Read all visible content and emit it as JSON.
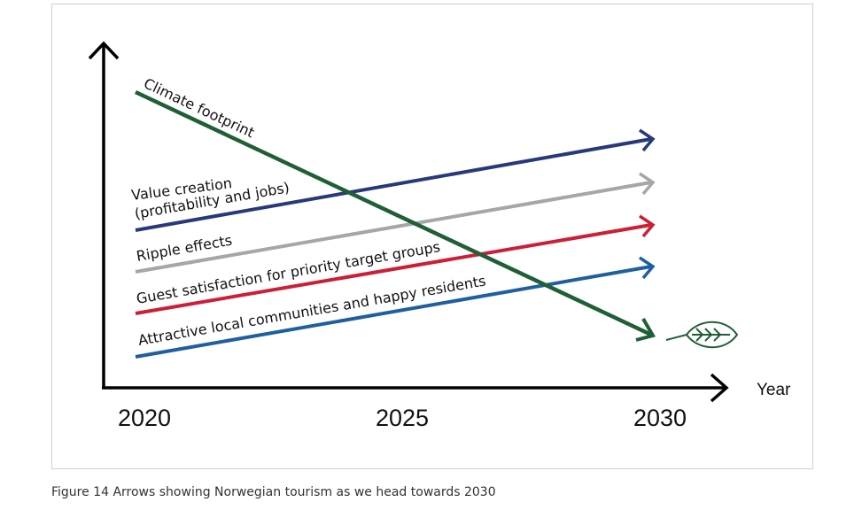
{
  "figure": {
    "caption": "Figure 14 Arrows showing Norwegian tourism as we head towards 2030"
  },
  "chart_data": {
    "type": "line",
    "x_axis": {
      "label": "Year",
      "ticks": [
        "2020",
        "2025",
        "2030"
      ]
    },
    "series": [
      {
        "name": "Climate footprint",
        "trend": "decreasing",
        "color": "#1f5f36"
      },
      {
        "name": "Value creation (profitability and jobs)",
        "label_lines": [
          "Value creation",
          "(profitability and jobs)"
        ],
        "trend": "increasing",
        "color": "#263a7a"
      },
      {
        "name": "Ripple effects",
        "trend": "increasing",
        "color": "#a6a6a6"
      },
      {
        "name": "Guest satisfaction for priority target groups",
        "trend": "increasing",
        "color": "#cc1f36"
      },
      {
        "name": "Attractive local communities and happy residents",
        "trend": "increasing",
        "color": "#1f5fa0"
      }
    ],
    "end_marker": "leaf-icon"
  }
}
